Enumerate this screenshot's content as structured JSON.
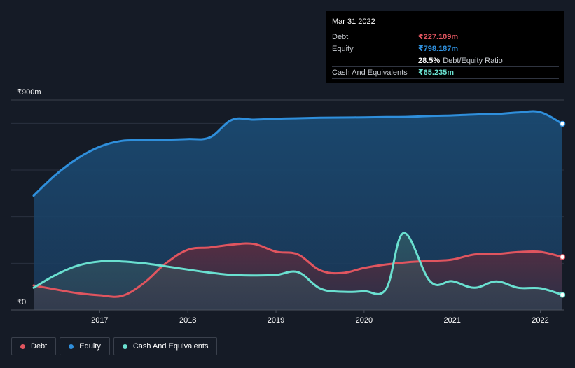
{
  "tooltip": {
    "date": "Mar 31 2022",
    "rows": [
      {
        "label": "Debt",
        "value": "₹227.109m",
        "color": "#e0555f"
      },
      {
        "label": "Equity",
        "value": "₹798.187m",
        "color": "#2f8fdc"
      },
      {
        "label": "",
        "value": "28.5%",
        "extra": "Debt/Equity Ratio",
        "color": "#ffffff"
      },
      {
        "label": "Cash And Equivalents",
        "value": "₹65.235m",
        "color": "#6ae0d0"
      }
    ]
  },
  "legend": [
    {
      "label": "Debt",
      "color": "#e0555f"
    },
    {
      "label": "Equity",
      "color": "#2f8fdc"
    },
    {
      "label": "Cash And Equivalents",
      "color": "#6ae0d0"
    }
  ],
  "chart_data": {
    "type": "area",
    "y_top_label": "₹900m",
    "y_zero_label": "₹0",
    "ylim": [
      0,
      900
    ],
    "xlim": [
      2016.25,
      2022.25
    ],
    "x_ticks": [
      "2017",
      "2018",
      "2019",
      "2020",
      "2021",
      "2022"
    ],
    "x_tick_values": [
      2017,
      2018,
      2019,
      2020,
      2021,
      2022
    ],
    "grid": true,
    "legend_position": "bottom-left",
    "series": [
      {
        "name": "Equity",
        "color": "#2f8fdc",
        "points": [
          [
            2016.25,
            490
          ],
          [
            2016.5,
            580
          ],
          [
            2016.75,
            650
          ],
          [
            2017.0,
            700
          ],
          [
            2017.25,
            725
          ],
          [
            2017.5,
            728
          ],
          [
            2017.75,
            730
          ],
          [
            2018.0,
            733
          ],
          [
            2018.25,
            740
          ],
          [
            2018.5,
            815
          ],
          [
            2018.75,
            816
          ],
          [
            2019.0,
            820
          ],
          [
            2019.25,
            822
          ],
          [
            2019.5,
            824
          ],
          [
            2019.75,
            825
          ],
          [
            2020.0,
            826
          ],
          [
            2020.25,
            827
          ],
          [
            2020.5,
            828
          ],
          [
            2020.75,
            832
          ],
          [
            2021.0,
            834
          ],
          [
            2021.25,
            838
          ],
          [
            2021.5,
            840
          ],
          [
            2021.75,
            847
          ],
          [
            2022.0,
            848
          ],
          [
            2022.25,
            798
          ]
        ]
      },
      {
        "name": "Debt",
        "color": "#e0555f",
        "points": [
          [
            2016.25,
            105
          ],
          [
            2016.5,
            88
          ],
          [
            2016.75,
            72
          ],
          [
            2017.0,
            63
          ],
          [
            2017.25,
            60
          ],
          [
            2017.5,
            115
          ],
          [
            2017.75,
            200
          ],
          [
            2018.0,
            258
          ],
          [
            2018.25,
            268
          ],
          [
            2018.5,
            280
          ],
          [
            2018.75,
            283
          ],
          [
            2019.0,
            250
          ],
          [
            2019.25,
            238
          ],
          [
            2019.5,
            170
          ],
          [
            2019.75,
            158
          ],
          [
            2020.0,
            180
          ],
          [
            2020.25,
            195
          ],
          [
            2020.5,
            205
          ],
          [
            2020.75,
            210
          ],
          [
            2021.0,
            216
          ],
          [
            2021.25,
            238
          ],
          [
            2021.5,
            240
          ],
          [
            2021.75,
            248
          ],
          [
            2022.0,
            249
          ],
          [
            2022.25,
            227
          ]
        ]
      },
      {
        "name": "Cash And Equivalents",
        "color": "#6ae0d0",
        "points": [
          [
            2016.25,
            95
          ],
          [
            2016.5,
            150
          ],
          [
            2016.75,
            190
          ],
          [
            2017.0,
            208
          ],
          [
            2017.25,
            208
          ],
          [
            2017.5,
            200
          ],
          [
            2017.75,
            187
          ],
          [
            2018.0,
            173
          ],
          [
            2018.25,
            160
          ],
          [
            2018.5,
            150
          ],
          [
            2018.75,
            148
          ],
          [
            2019.0,
            150
          ],
          [
            2019.25,
            162
          ],
          [
            2019.5,
            92
          ],
          [
            2019.75,
            78
          ],
          [
            2020.0,
            80
          ],
          [
            2020.25,
            90
          ],
          [
            2020.45,
            330
          ],
          [
            2020.75,
            122
          ],
          [
            2021.0,
            123
          ],
          [
            2021.25,
            95
          ],
          [
            2021.5,
            122
          ],
          [
            2021.75,
            95
          ],
          [
            2022.0,
            93
          ],
          [
            2022.25,
            65
          ]
        ]
      }
    ]
  }
}
